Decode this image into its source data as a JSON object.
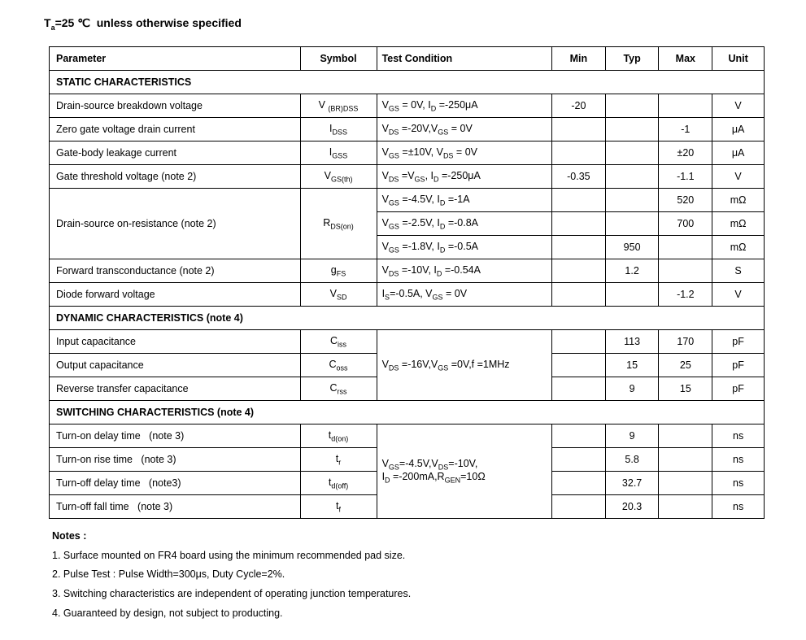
{
  "title_html": "T<sub>a</sub>=25 ℃ &nbsp;unless otherwise specified",
  "headers": {
    "parameter": "Parameter",
    "symbol": "Symbol",
    "condition": "Test Condition",
    "min": "Min",
    "typ": "Typ",
    "max": "Max",
    "unit": "Unit"
  },
  "sections": [
    {
      "title": "STATIC CHARACTERISTICS",
      "rows": [
        {
          "param": "Drain-source breakdown voltage",
          "symbol": "V <sub>(BR)DSS</sub>",
          "cond": "V<sub>GS</sub> = 0V, I<sub>D</sub> =-250μA",
          "min": "-20",
          "typ": "",
          "max": "",
          "unit": "V"
        },
        {
          "param": "Zero gate voltage drain current",
          "symbol": "I<sub>DSS</sub>",
          "cond": "V<sub>DS</sub> =-20V,V<sub>GS</sub> = 0V",
          "min": "",
          "typ": "",
          "max": "-1",
          "unit": "μA"
        },
        {
          "param": "Gate-body leakage current",
          "symbol": "I<sub>GSS</sub>",
          "cond": "V<sub>GS</sub> =±10V, V<sub>DS</sub> = 0V",
          "min": "",
          "typ": "",
          "max": "±20",
          "unit": "μA"
        },
        {
          "param": "Gate threshold voltage (note 2)",
          "symbol": "V<sub>GS(th)</sub>",
          "cond": "V<sub>DS</sub> =V<sub>GS</sub>, I<sub>D</sub> =-250μA",
          "min": "-0.35",
          "typ": "",
          "max": "-1.1",
          "unit": "V"
        },
        {
          "param": "Drain-source on-resistance (note 2)",
          "param_rowspan": 3,
          "symbol": "R<sub>DS(on)</sub>",
          "symbol_rowspan": 3,
          "cond": "V<sub>GS</sub> =-4.5V, I<sub>D</sub> =-1A",
          "min": "",
          "typ": "",
          "max": "520",
          "unit": "mΩ"
        },
        {
          "cond": "V<sub>GS</sub> =-2.5V, I<sub>D</sub> =-0.8A",
          "min": "",
          "typ": "",
          "max": "700",
          "unit": "mΩ"
        },
        {
          "cond": "V<sub>GS</sub> =-1.8V, I<sub>D</sub> =-0.5A",
          "min": "",
          "typ": "950",
          "max": "",
          "unit": "mΩ"
        },
        {
          "param": "Forward transconductance (note 2)",
          "symbol": "g<sub>FS</sub>",
          "cond": "V<sub>DS</sub> =-10V, I<sub>D</sub> =-0.54A",
          "min": "",
          "typ": "1.2",
          "max": "",
          "unit": "S"
        },
        {
          "param": "Diode forward voltage",
          "symbol": "V<sub>SD</sub>",
          "cond": "I<sub>S</sub>=-0.5A, V<sub>GS</sub> = 0V",
          "min": "",
          "typ": "",
          "max": "-1.2",
          "unit": "V"
        }
      ]
    },
    {
      "title": "DYNAMIC CHARACTERISTICS (note 4)",
      "rows": [
        {
          "param": "Input capacitance",
          "symbol": "C<sub>iss</sub>",
          "cond": "V<sub>DS</sub> =-16V,V<sub>GS</sub> =0V,f =1MHz",
          "cond_rowspan": 3,
          "min": "",
          "typ": "113",
          "max": "170",
          "unit": "pF"
        },
        {
          "param": "Output capacitance",
          "symbol": "C<sub>oss</sub>",
          "min": "",
          "typ": "15",
          "max": "25",
          "unit": "pF"
        },
        {
          "param": "Reverse transfer capacitance",
          "symbol": "C<sub>rss</sub>",
          "min": "",
          "typ": "9",
          "max": "15",
          "unit": "pF"
        }
      ]
    },
    {
      "title": "SWITCHING CHARACTERISTICS (note 4)",
      "rows": [
        {
          "param": "Turn-on delay time &nbsp;&nbsp;(note 3)",
          "symbol": "t<sub>d(on)</sub>",
          "cond": "V<sub>GS</sub>=-4.5V,V<sub>DS</sub>=-10V,<br>I<sub>D</sub> =-200mA,R<sub>GEN</sub>=10Ω",
          "cond_rowspan": 4,
          "min": "",
          "typ": "9",
          "max": "",
          "unit": "ns"
        },
        {
          "param": "Turn-on rise time &nbsp;&nbsp;(note 3)",
          "symbol": "t<sub>r</sub>",
          "min": "",
          "typ": "5.8",
          "max": "",
          "unit": "ns"
        },
        {
          "param": "Turn-off delay time &nbsp;&nbsp;(note3)",
          "symbol": "t<sub>d(off)</sub>",
          "min": "",
          "typ": "32.7",
          "max": "",
          "unit": "ns"
        },
        {
          "param": "Turn-off fall time &nbsp;&nbsp;(note 3)",
          "symbol": "t<sub>f</sub>",
          "min": "",
          "typ": "20.3",
          "max": "",
          "unit": "ns"
        }
      ]
    }
  ],
  "notes_title": "Notes :",
  "notes": [
    "1. Surface mounted on FR4 board using the minimum recommended pad size.",
    "2. Pulse Test : Pulse Width=300μs, Duty Cycle=2%.",
    "3. Switching characteristics are independent of operating junction temperatures.",
    "4. Guaranteed by design, not subject to producting."
  ]
}
